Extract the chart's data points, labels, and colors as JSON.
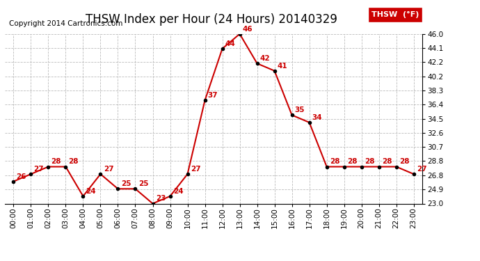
{
  "title": "THSW Index per Hour (24 Hours) 20140329",
  "copyright": "Copyright 2014 Cartronics.com",
  "legend_label": "THSW  (°F)",
  "hours": [
    0,
    1,
    2,
    3,
    4,
    5,
    6,
    7,
    8,
    9,
    10,
    11,
    12,
    13,
    14,
    15,
    16,
    17,
    18,
    19,
    20,
    21,
    22,
    23
  ],
  "hour_labels": [
    "00:00",
    "01:00",
    "02:00",
    "03:00",
    "04:00",
    "05:00",
    "06:00",
    "07:00",
    "08:00",
    "09:00",
    "10:00",
    "11:00",
    "12:00",
    "13:00",
    "14:00",
    "15:00",
    "16:00",
    "17:00",
    "18:00",
    "19:00",
    "20:00",
    "21:00",
    "22:00",
    "23:00"
  ],
  "values": [
    26,
    27,
    28,
    28,
    24,
    27,
    25,
    25,
    23,
    24,
    27,
    37,
    44,
    46,
    42,
    41,
    35,
    34,
    28,
    28,
    28,
    28,
    28,
    27
  ],
  "ylim": [
    23.0,
    46.0
  ],
  "yticks": [
    23.0,
    24.9,
    26.8,
    28.8,
    30.7,
    32.6,
    34.5,
    36.4,
    38.3,
    40.2,
    42.2,
    44.1,
    46.0
  ],
  "line_color": "#cc0000",
  "marker_color": "#000000",
  "grid_color": "#bbbbbb",
  "bg_color": "#ffffff",
  "legend_bg": "#cc0000",
  "legend_text_color": "#ffffff",
  "title_fontsize": 12,
  "label_fontsize": 7.5,
  "annotation_fontsize": 7.5,
  "copyright_fontsize": 7.5
}
